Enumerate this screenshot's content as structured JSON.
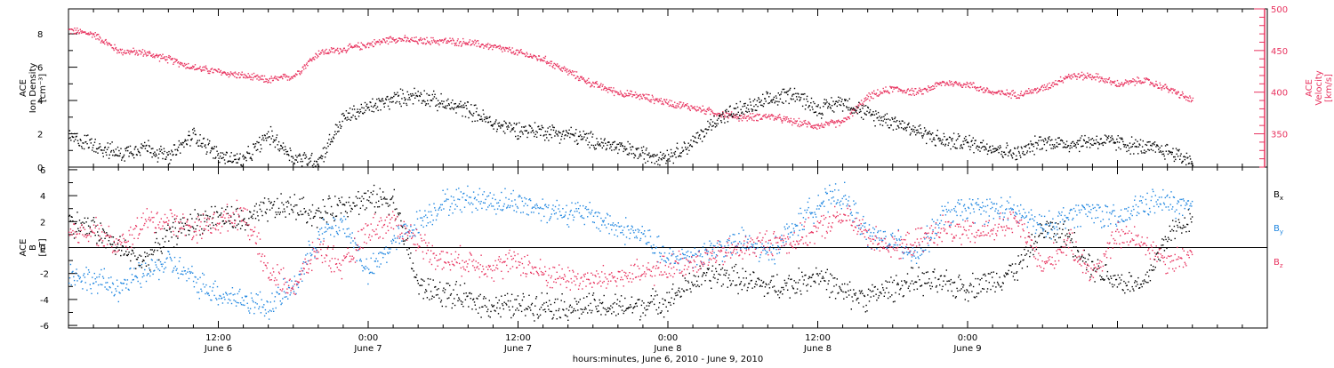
{
  "chart_data": [
    {
      "type": "scatter",
      "panel": "top",
      "left_label": [
        "ACE",
        "Ion Density",
        "[cm⁻³]"
      ],
      "right_label": [
        "ACE",
        "Velocity",
        "[km/s]"
      ],
      "left_ylim": [
        0,
        9.5
      ],
      "left_yticks": [
        0,
        2,
        4,
        6,
        8
      ],
      "left_ytick_labels": [
        "0",
        "2",
        "4",
        "6",
        "8"
      ],
      "right_ylim": [
        310,
        500
      ],
      "right_yticks": [
        350,
        400,
        450,
        500
      ],
      "right_ytick_labels": [
        "350",
        "400",
        "450",
        "500"
      ],
      "series": [
        {
          "axis": "left",
          "color": "#000000",
          "x": [
            0,
            2,
            4,
            6,
            8,
            10,
            12,
            14,
            16,
            18,
            20,
            22,
            24,
            26,
            28,
            30,
            32,
            34,
            36,
            38,
            40,
            42,
            44,
            46,
            48,
            50,
            52,
            54,
            56,
            58,
            60,
            62,
            64,
            66,
            68,
            70,
            72,
            74,
            76,
            78,
            80,
            82,
            84,
            86,
            88,
            90
          ],
          "y": [
            1.8,
            1.4,
            0.8,
            1.3,
            0.6,
            2.0,
            0.7,
            0.4,
            2.0,
            0.6,
            0.4,
            3.0,
            3.6,
            4.1,
            4.4,
            3.8,
            3.5,
            2.6,
            2.3,
            2.2,
            2.0,
            1.6,
            1.2,
            0.8,
            0.7,
            1.5,
            3.0,
            3.5,
            4.0,
            4.5,
            3.5,
            4.0,
            3.2,
            2.8,
            2.2,
            1.6,
            1.5,
            1.2,
            0.8,
            1.6,
            1.4,
            1.6,
            1.5,
            1.2,
            1.0,
            0.4
          ]
        },
        {
          "axis": "right",
          "color": "#e8335f",
          "x": [
            0,
            2,
            4,
            6,
            8,
            10,
            12,
            14,
            16,
            18,
            20,
            22,
            24,
            26,
            28,
            30,
            32,
            34,
            36,
            38,
            40,
            42,
            44,
            46,
            48,
            50,
            52,
            54,
            56,
            58,
            60,
            62,
            64,
            66,
            68,
            70,
            72,
            74,
            76,
            78,
            80,
            82,
            84,
            86,
            88,
            90
          ],
          "y": [
            475,
            470,
            450,
            448,
            440,
            430,
            425,
            420,
            415,
            420,
            448,
            452,
            458,
            465,
            462,
            462,
            460,
            455,
            448,
            440,
            425,
            410,
            400,
            395,
            388,
            382,
            375,
            370,
            372,
            365,
            360,
            365,
            395,
            405,
            400,
            412,
            410,
            400,
            398,
            405,
            420,
            420,
            410,
            415,
            405,
            390
          ]
        }
      ]
    },
    {
      "type": "scatter",
      "panel": "bottom",
      "left_label": [
        "ACE",
        "B",
        "[nT]"
      ],
      "ylim": [
        -6.2,
        6.2
      ],
      "yticks": [
        -6,
        -4,
        -2,
        0,
        2,
        4,
        6
      ],
      "ytick_labels": [
        "-6",
        "-4",
        "-2",
        "0",
        "2",
        "4",
        "6"
      ],
      "legend": [
        {
          "label": "B",
          "sub": "x",
          "color": "#000000"
        },
        {
          "label": "B",
          "sub": "y",
          "color": "#1f86e0"
        },
        {
          "label": "B",
          "sub": "z",
          "color": "#e8335f"
        }
      ],
      "series": [
        {
          "name": "Bx",
          "color": "#000000",
          "x": [
            0,
            2,
            4,
            6,
            8,
            10,
            12,
            14,
            16,
            18,
            20,
            22,
            24,
            26,
            28,
            30,
            32,
            34,
            36,
            38,
            40,
            42,
            44,
            46,
            48,
            50,
            52,
            54,
            56,
            58,
            60,
            62,
            64,
            66,
            68,
            70,
            72,
            74,
            76,
            78,
            80,
            82,
            84,
            86,
            88,
            90
          ],
          "y": [
            2.0,
            1.5,
            0.0,
            -1.0,
            1.0,
            2.0,
            2.5,
            2.0,
            3.0,
            3.2,
            2.5,
            3.5,
            3.7,
            3.8,
            -3.0,
            -3.5,
            -4.0,
            -4.4,
            -4.5,
            -4.3,
            -4.6,
            -4.5,
            -4.6,
            -4.4,
            -4.0,
            -2.5,
            -2.0,
            -2.5,
            -3.0,
            -2.8,
            -2.0,
            -3.5,
            -3.8,
            -3.0,
            -2.5,
            -2.8,
            -3.0,
            -2.5,
            -1.5,
            1.5,
            1.0,
            -1.5,
            -2.5,
            -3.0,
            1.0,
            2.5
          ]
        },
        {
          "name": "By",
          "color": "#1f86e0",
          "x": [
            0,
            2,
            4,
            6,
            8,
            10,
            12,
            14,
            16,
            18,
            20,
            22,
            24,
            26,
            28,
            30,
            32,
            34,
            36,
            38,
            40,
            42,
            44,
            46,
            48,
            50,
            52,
            54,
            56,
            58,
            60,
            62,
            64,
            66,
            68,
            70,
            72,
            74,
            76,
            78,
            80,
            82,
            84,
            86,
            88,
            90
          ],
          "y": [
            -2.0,
            -2.5,
            -3.0,
            -2.0,
            -1.0,
            -2.5,
            -3.5,
            -4.0,
            -4.5,
            -3.0,
            1.0,
            2.0,
            -2.0,
            0.5,
            2.0,
            3.5,
            3.8,
            3.6,
            3.5,
            3.0,
            2.8,
            2.5,
            1.5,
            1.0,
            -1.0,
            -0.5,
            0.0,
            0.5,
            -0.5,
            1.5,
            3.5,
            4.0,
            1.0,
            0.5,
            -0.5,
            2.5,
            3.0,
            3.0,
            2.8,
            1.5,
            2.5,
            3.0,
            2.0,
            3.5,
            3.5,
            3.0
          ]
        },
        {
          "name": "Bz",
          "color": "#e8335f",
          "x": [
            0,
            2,
            4,
            6,
            8,
            10,
            12,
            14,
            16,
            18,
            20,
            22,
            24,
            26,
            28,
            30,
            32,
            34,
            36,
            38,
            40,
            42,
            44,
            46,
            48,
            50,
            52,
            54,
            56,
            58,
            60,
            62,
            64,
            66,
            68,
            70,
            72,
            74,
            76,
            78,
            80,
            82,
            84,
            86,
            88,
            90
          ],
          "y": [
            1.0,
            1.5,
            0.0,
            2.0,
            2.2,
            1.5,
            2.0,
            2.8,
            -2.0,
            -3.0,
            0.0,
            -1.5,
            1.5,
            2.0,
            0.5,
            -1.0,
            -1.0,
            -1.5,
            -1.0,
            -2.0,
            -2.3,
            -2.5,
            -2.2,
            -2.0,
            -1.5,
            -1.0,
            -0.5,
            0.0,
            0.5,
            0.5,
            1.5,
            2.5,
            1.0,
            0.0,
            0.5,
            1.5,
            1.0,
            1.5,
            2.0,
            -1.5,
            0.5,
            -2.0,
            1.0,
            0.5,
            -1.0,
            -0.5
          ]
        }
      ]
    }
  ],
  "x_axis": {
    "range": [
      0,
      96
    ],
    "major_ticks": [
      12,
      36,
      60,
      84
    ],
    "tick_labels": [
      {
        "x": 12,
        "time": "12:00",
        "date": "June 6"
      },
      {
        "x": 24,
        "time": "0:00",
        "date": "June 7"
      },
      {
        "x": 36,
        "time": "12:00",
        "date": "June 7"
      },
      {
        "x": 48,
        "time": "0:00",
        "date": "June 8"
      },
      {
        "x": 60,
        "time": "12:00",
        "date": "June 8"
      },
      {
        "x": 72,
        "time": "0:00",
        "date": "June 9"
      }
    ],
    "title": "hours:minutes, June  6, 2010 - June  9, 2010"
  }
}
